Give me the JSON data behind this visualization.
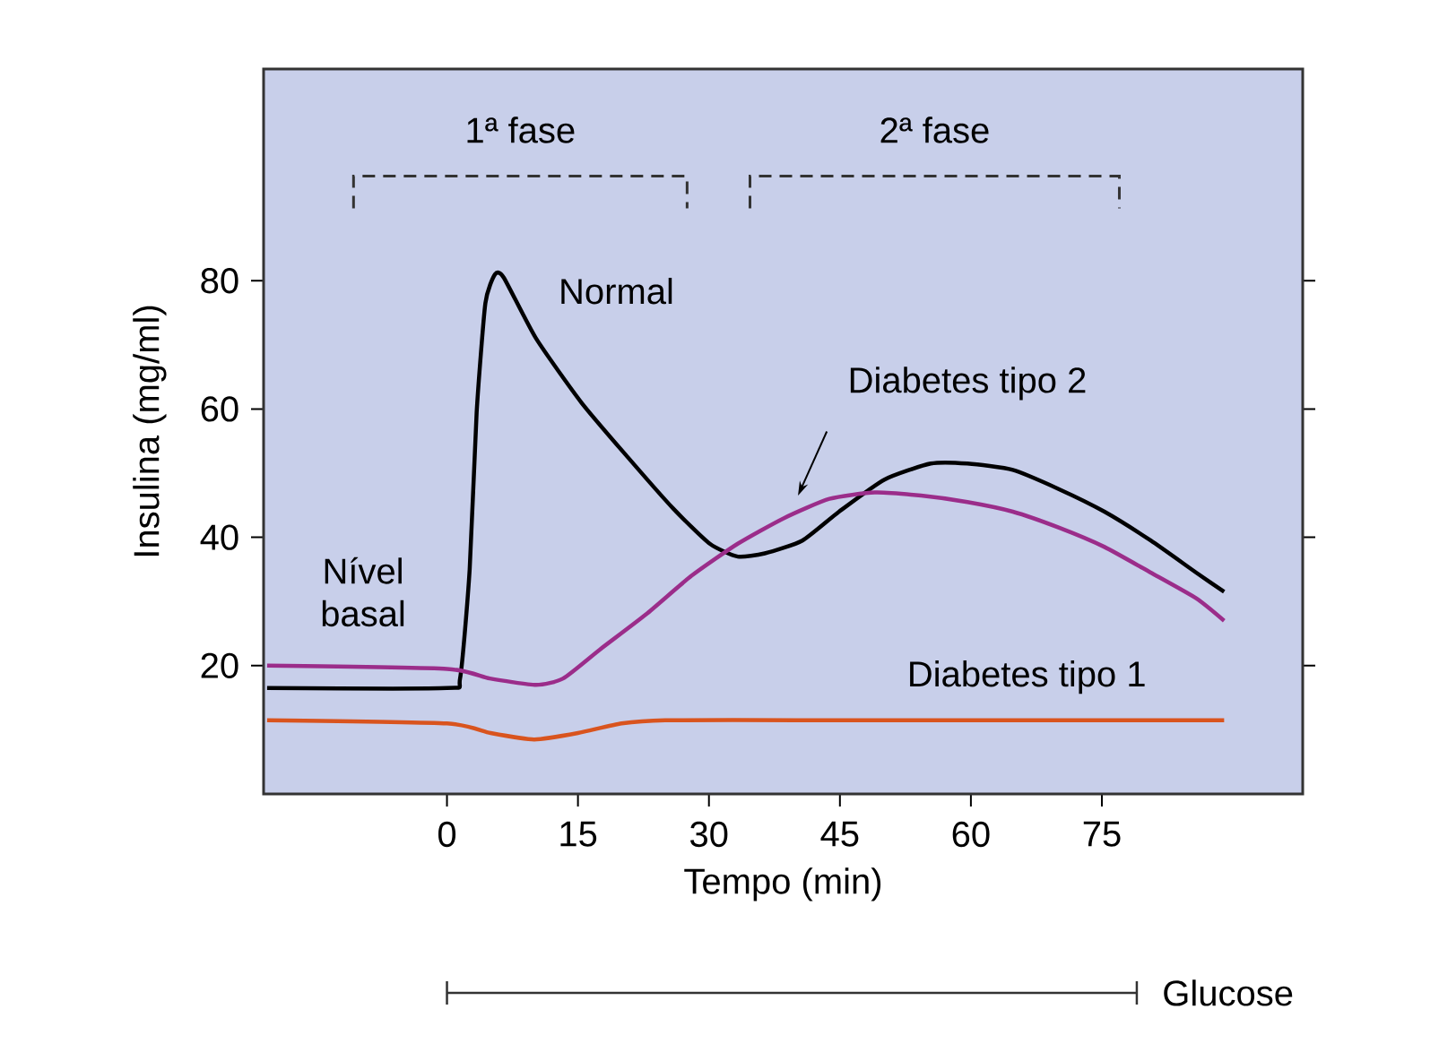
{
  "chart_data": {
    "type": "line",
    "xlabel": "Tempo (min)",
    "ylabel": "Insulina (mg/ml)",
    "xlim": [
      -21,
      98
    ],
    "ylim": [
      0,
      113
    ],
    "xticks": [
      0,
      15,
      30,
      45,
      60,
      75
    ],
    "yticks": [
      20,
      40,
      60,
      80
    ],
    "line_style": "solid",
    "marker": "none",
    "legend": false,
    "grid": false,
    "series": [
      {
        "name": "Normal",
        "color": "#000000",
        "x": [
          -20.6,
          0,
          1.5,
          2.6,
          3.4,
          4.4,
          5.5,
          6.5,
          10.2,
          15.4,
          20.7,
          25.9,
          30.1,
          33.3,
          36.4,
          40.7,
          44.9,
          50.1,
          55.4,
          59.6,
          64.8,
          70.1,
          75.3,
          80.6,
          85.8,
          89
        ],
        "values": [
          16.5,
          16.5,
          18,
          35,
          59.5,
          76.5,
          81,
          80.5,
          71,
          61,
          52.5,
          44.5,
          39,
          37,
          37.5,
          39.5,
          44,
          49,
          51.5,
          51.5,
          50.5,
          47.5,
          44,
          39.5,
          34.5,
          31.5
        ]
      },
      {
        "name": "Diabetes tipo 2",
        "color": "#9b2d8a",
        "x": [
          -20.6,
          0,
          4.9,
          10.2,
          13.3,
          17.5,
          22.8,
          28,
          33.3,
          38.6,
          43.8,
          49,
          54.3,
          59.6,
          64.8,
          70.1,
          75.3,
          80.6,
          85.8,
          89
        ],
        "values": [
          20,
          19.5,
          18,
          17,
          18,
          22.5,
          28,
          34,
          39,
          43,
          46,
          47,
          46.5,
          45.5,
          44,
          41.5,
          38.5,
          34.5,
          30.5,
          27
        ]
      },
      {
        "name": "Diabetes tipo 1",
        "color": "#d9541e",
        "x": [
          -20.6,
          0,
          5,
          10,
          15,
          20,
          25,
          40,
          55,
          70,
          89
        ],
        "values": [
          11.5,
          11,
          9.5,
          8.5,
          9.5,
          11,
          11.5,
          11.5,
          11.5,
          11.5,
          11.5
        ]
      }
    ],
    "annotations": [
      "Nível basal",
      "1ª fase",
      "2ª fase",
      "Glucose"
    ]
  }
}
